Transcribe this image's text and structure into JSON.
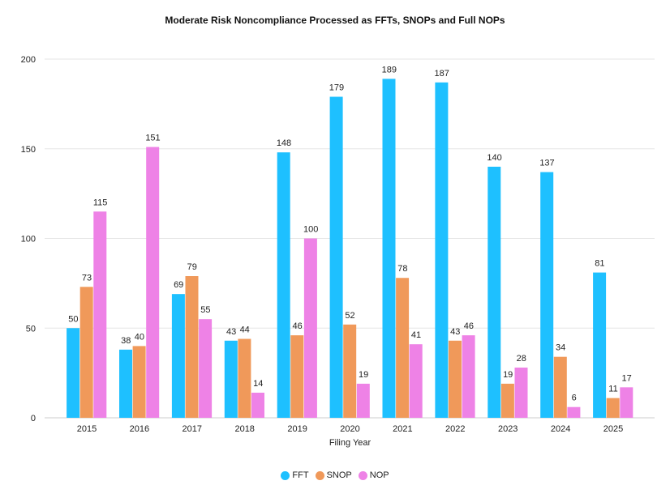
{
  "chart_data": {
    "type": "bar",
    "title": "Moderate Risk Noncompliance Processed as FFTs, SNOPs and Full NOPs",
    "xlabel": "Filing Year",
    "ylabel": "",
    "ylim": [
      0,
      200
    ],
    "yticks": [
      0,
      50,
      100,
      150,
      200
    ],
    "grid": true,
    "legend_position": "bottom",
    "categories": [
      "2015",
      "2016",
      "2017",
      "2018",
      "2019",
      "2020",
      "2021",
      "2022",
      "2023",
      "2024",
      "2025"
    ],
    "series": [
      {
        "name": "FFT",
        "color": "#1ec0ff",
        "values": [
          50,
          38,
          69,
          43,
          148,
          179,
          189,
          187,
          140,
          137,
          81
        ]
      },
      {
        "name": "SNOP",
        "color": "#f0995a",
        "values": [
          73,
          40,
          79,
          44,
          46,
          52,
          78,
          43,
          19,
          34,
          11
        ]
      },
      {
        "name": "NOP",
        "color": "#ee82e6",
        "values": [
          115,
          151,
          55,
          14,
          100,
          19,
          41,
          46,
          28,
          6,
          17
        ]
      }
    ]
  }
}
